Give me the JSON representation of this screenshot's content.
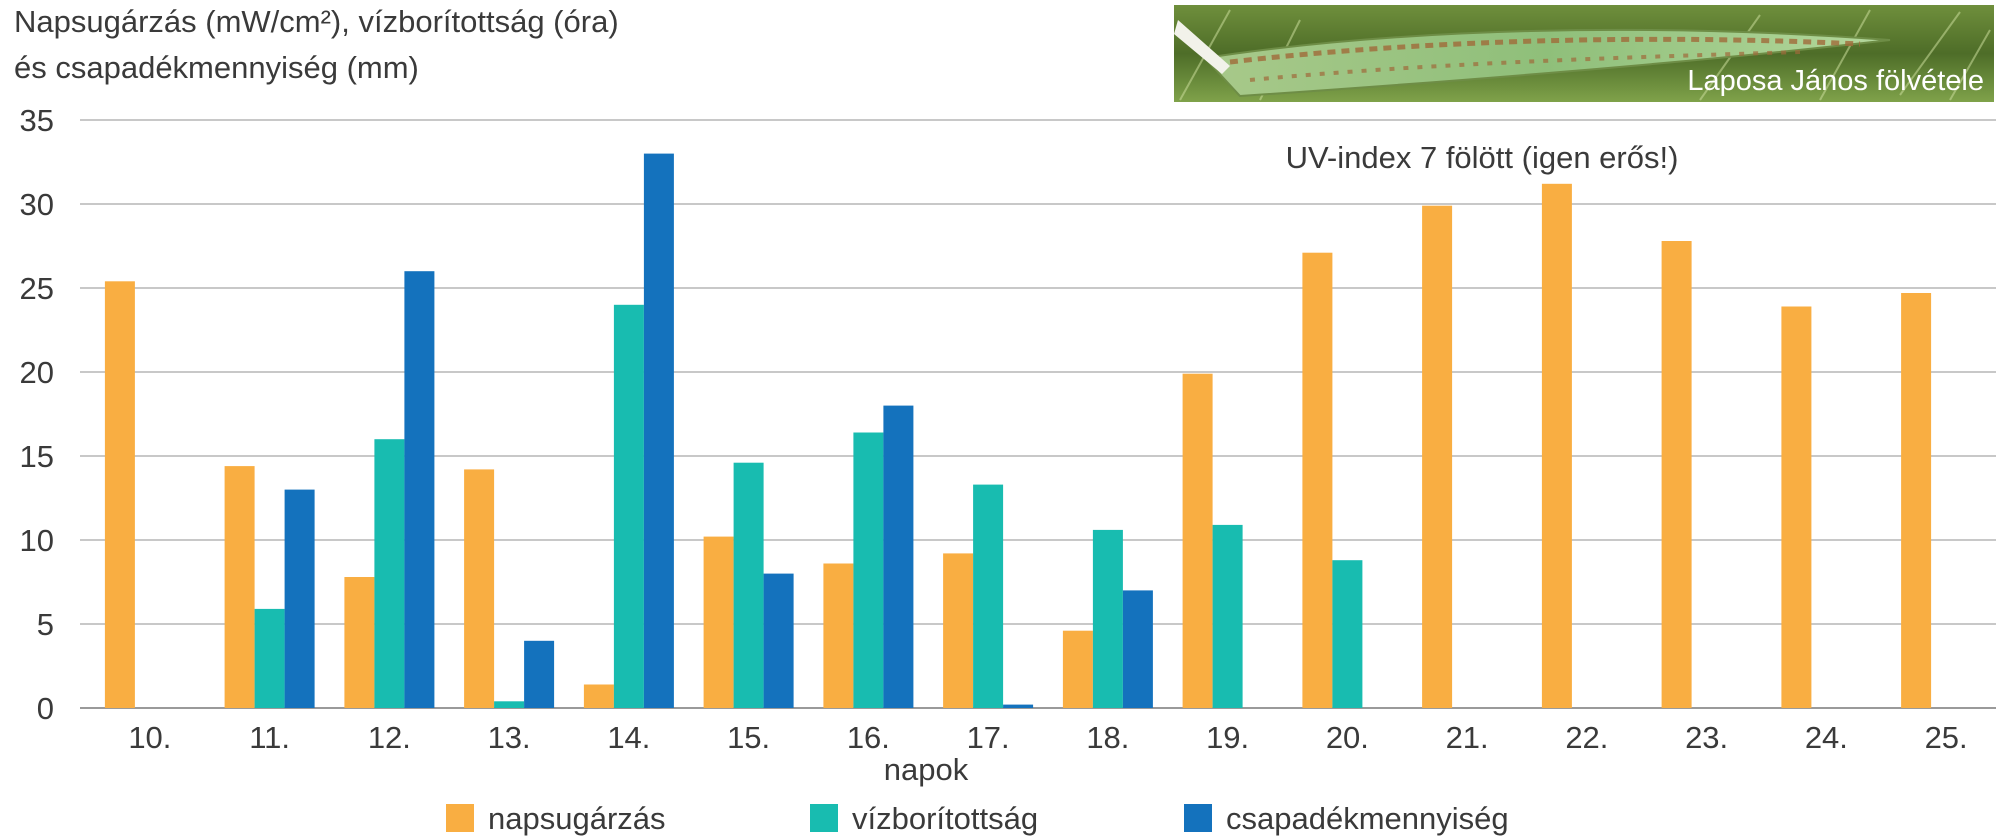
{
  "chart_data": {
    "type": "bar",
    "ylabel_lines": [
      "Napsugárzás (mW/cm²), vízborítottság (óra)",
      "és csapadékmennyiség (mm)"
    ],
    "xlabel": "napok",
    "annotation": "UV-index 7 fölött (igen erős!)",
    "photo_credit": "Laposa János fölvétele",
    "photo_subject": "leaf-with-rust-icon",
    "ylim": [
      0,
      35
    ],
    "yticks": [
      0,
      5,
      10,
      15,
      20,
      25,
      30,
      35
    ],
    "grid": true,
    "legend_position": "bottom",
    "categories": [
      "10.",
      "11.",
      "12.",
      "13.",
      "14.",
      "15.",
      "16.",
      "17.",
      "18.",
      "19.",
      "20.",
      "21.",
      "22.",
      "23.",
      "24.",
      "25."
    ],
    "series": [
      {
        "name": "napsugárzás",
        "color": "#f9ae42",
        "values": [
          25.4,
          14.4,
          7.8,
          14.2,
          1.4,
          10.2,
          8.6,
          9.2,
          4.6,
          19.9,
          27.1,
          29.9,
          31.2,
          27.8,
          23.9,
          24.7
        ]
      },
      {
        "name": "vízborítottság",
        "color": "#18bcb0",
        "values": [
          0,
          5.9,
          16,
          0.4,
          24,
          14.6,
          16.4,
          13.3,
          10.6,
          10.9,
          8.8,
          0,
          0,
          0,
          0,
          0
        ]
      },
      {
        "name": "csapadékmennyiség",
        "color": "#1472bd",
        "values": [
          0,
          13,
          26,
          4,
          33,
          8,
          18,
          0.2,
          7,
          0,
          0,
          0,
          0,
          0,
          0,
          0
        ]
      }
    ]
  }
}
